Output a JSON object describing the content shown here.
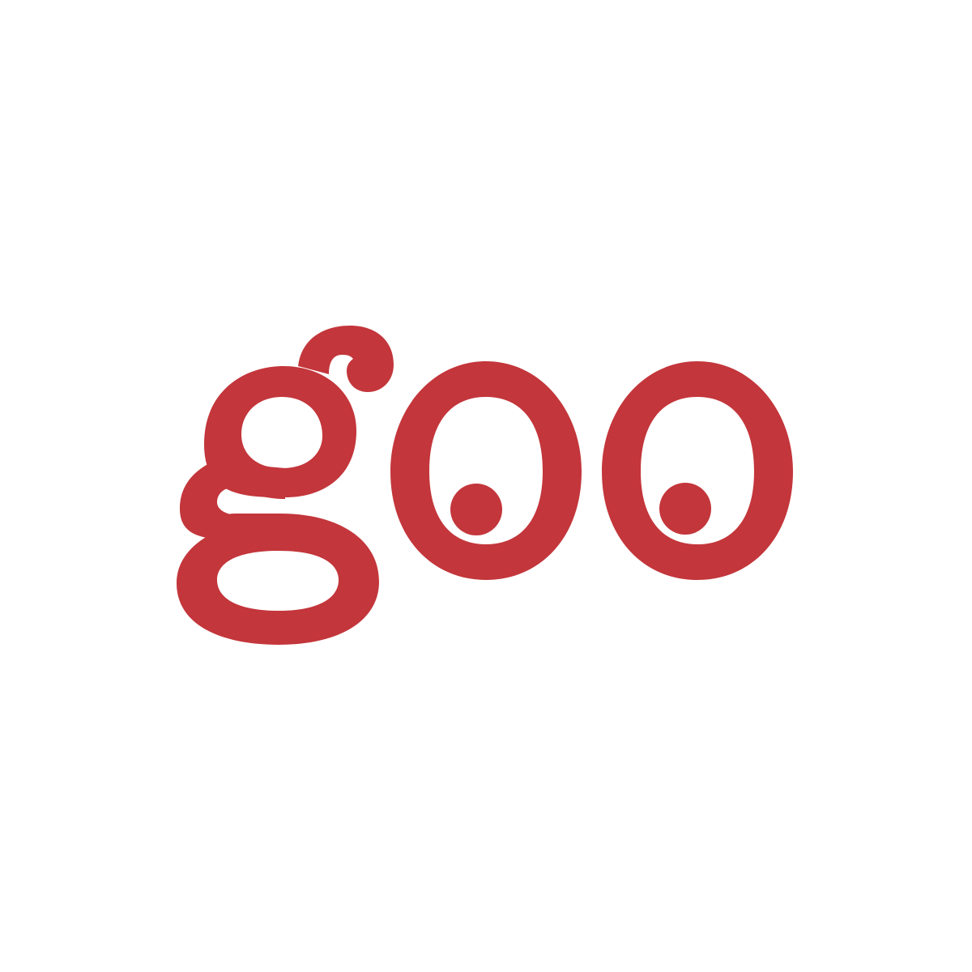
{
  "logo": {
    "text": "goo",
    "brand_color": "#C3363B",
    "background_color": "#FFFFFF",
    "icon": "goo-wordmark-logo-icon"
  }
}
